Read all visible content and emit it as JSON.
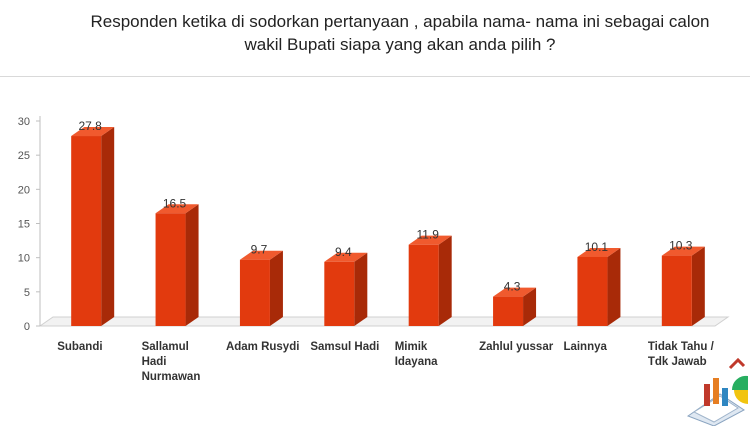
{
  "title": "Responden ketika di sodorkan pertanyaan , apabila nama- nama ini sebagai calon wakil Bupati siapa yang akan anda pilih ?",
  "chart_data": {
    "type": "bar",
    "title": "Responden ketika di sodorkan pertanyaan , apabila nama- nama ini sebagai calon wakil Bupati siapa yang akan anda pilih ?",
    "categories": [
      "Subandi",
      "Sallamul\nHadi\nNurmawan",
      "Adam Rusydi",
      "Samsul Hadi",
      "Mimik\nIdayana",
      "Zahlul yussar",
      "Lainnya",
      "Tidak Tahu /\nTdk Jawab"
    ],
    "values": [
      27.8,
      16.5,
      9.7,
      9.4,
      11.9,
      4.3,
      10.1,
      10.3
    ],
    "value_labels": [
      "27.8",
      "16.5",
      "9.7",
      "9.4",
      "11.9",
      "4.3",
      "10.1",
      "10.3"
    ],
    "yticks": [
      "0",
      "5",
      "10",
      "15",
      "20",
      "25",
      "30"
    ],
    "ylim": [
      0,
      30
    ],
    "grid": false,
    "bar_color": "#e23a0e",
    "bar_side_color": "#a82a08",
    "bar_top_color": "#f05a2e"
  }
}
